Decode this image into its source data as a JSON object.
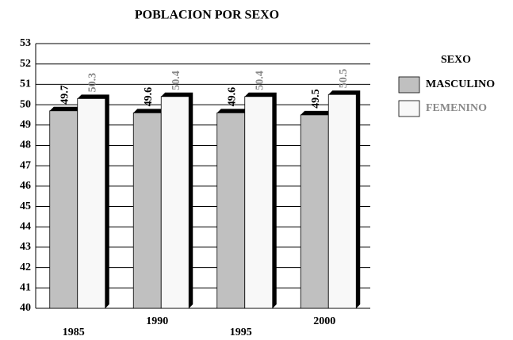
{
  "chart_data": {
    "type": "bar",
    "title": "POBLACION POR SEXO",
    "categories": [
      "1985",
      "1990",
      "1995",
      "2000"
    ],
    "legend_title": "SEXO",
    "series": [
      {
        "name": "MASCULINO",
        "color": "#c0c0c0",
        "values": [
          49.7,
          49.6,
          49.6,
          49.5
        ]
      },
      {
        "name": "FEMENINO",
        "color": "#f8f8f8",
        "values": [
          50.3,
          50.4,
          50.4,
          50.5
        ]
      }
    ],
    "ylim": [
      40,
      53
    ],
    "yticks": [
      40,
      41,
      42,
      43,
      44,
      45,
      46,
      47,
      48,
      49,
      50,
      51,
      52,
      53
    ],
    "grid": true,
    "legend": "right"
  }
}
